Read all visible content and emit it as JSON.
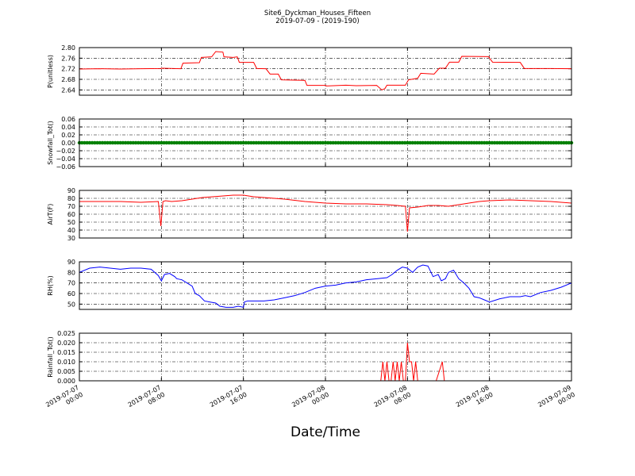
{
  "chart_data": {
    "type": "line",
    "title": "Site6_Dyckman_Houses_Fifteen",
    "subtitle": "2019-07-09 - (2019-190)",
    "xlabel": "Date/Time",
    "grid": true,
    "x_ticks": [
      "2019-07-07 00:00",
      "2019-07-07 08:00",
      "2019-07-07 16:00",
      "2019-07-08 00:00",
      "2019-07-08 08:00",
      "2019-07-08 16:00",
      "2019-07-09 00:00"
    ],
    "x_tick_lines": [
      [
        "2019-07-07",
        "00:00"
      ],
      [
        "2019-07-07",
        "08:00"
      ],
      [
        "2019-07-07",
        "16:00"
      ],
      [
        "2019-07-08",
        "00:00"
      ],
      [
        "2019-07-08",
        "08:00"
      ],
      [
        "2019-07-08",
        "16:00"
      ],
      [
        "2019-07-09",
        "00:00"
      ]
    ],
    "x_range_hours": [
      0,
      48
    ],
    "panels": [
      {
        "ylabel": "P(unitless)",
        "ylim": [
          2.62,
          2.8
        ],
        "yticks": [
          "2.80",
          "2.76",
          "2.72",
          "2.68",
          "2.64"
        ],
        "ytick_values": [
          2.8,
          2.76,
          2.72,
          2.68,
          2.64
        ],
        "color": "#ff0000",
        "hours": [
          0,
          2,
          4,
          6,
          7.9,
          8.1,
          9.9,
          10.1,
          11.7,
          11.9,
          12.9,
          13.3,
          14.0,
          14.1,
          15.0,
          15.4,
          15.6,
          17.0,
          17.3,
          18.2,
          18.6,
          19.4,
          19.7,
          22.0,
          22.2,
          24.0,
          24.1,
          26.0,
          27.0,
          29.0,
          29.5,
          29.8,
          30.0,
          31.8,
          32.1,
          33.0,
          33.3,
          34.6,
          35.1,
          35.7,
          36.1,
          37.0,
          37.3,
          39.9,
          40.3,
          43.0,
          43.4,
          46.0,
          48.0
        ],
        "values": [
          2.719,
          2.72,
          2.719,
          2.72,
          2.721,
          2.722,
          2.72,
          2.741,
          2.743,
          2.763,
          2.765,
          2.785,
          2.783,
          2.765,
          2.763,
          2.765,
          2.744,
          2.744,
          2.721,
          2.72,
          2.7,
          2.7,
          2.678,
          2.676,
          2.657,
          2.657,
          2.655,
          2.658,
          2.656,
          2.657,
          2.64,
          2.645,
          2.658,
          2.658,
          2.678,
          2.684,
          2.703,
          2.7,
          2.722,
          2.722,
          2.745,
          2.745,
          2.767,
          2.766,
          2.745,
          2.744,
          2.721,
          2.721,
          2.72
        ]
      },
      {
        "ylabel": "Snowfall_Tot()",
        "ylim": [
          -0.06,
          0.06
        ],
        "yticks": [
          "0.06",
          "0.04",
          "0.02",
          "0.00",
          "−0.02",
          "−0.04",
          "−0.06"
        ],
        "ytick_values": [
          0.06,
          0.04,
          0.02,
          0.0,
          -0.02,
          -0.04,
          -0.06
        ],
        "color": "#008000",
        "marker": "dot",
        "hours": [
          0,
          48
        ],
        "values": [
          0,
          0
        ]
      },
      {
        "ylabel": "AirT(F)",
        "ylim": [
          30,
          90
        ],
        "yticks": [
          "90",
          "80",
          "70",
          "60",
          "50",
          "40",
          "30"
        ],
        "ytick_values": [
          90,
          80,
          70,
          60,
          50,
          40,
          30
        ],
        "color": "#ff0000",
        "hours": [
          0,
          2,
          4,
          6,
          7.7,
          7.95,
          8.15,
          8.4,
          9.0,
          10.0,
          11.0,
          12.0,
          13.0,
          14.0,
          15.0,
          16.0,
          17.0,
          18.0,
          20.0,
          22.0,
          24.0,
          26.0,
          28.0,
          30.0,
          31.0,
          31.8,
          32.0,
          32.2,
          33.0,
          34.0,
          35.0,
          36.0,
          37.0,
          38.0,
          39.0,
          40.0,
          42.0,
          44.0,
          46.0,
          48.0
        ],
        "values": [
          76,
          76,
          76,
          75,
          76,
          45,
          76,
          77,
          76,
          77,
          79,
          81,
          82,
          83,
          84,
          84,
          82,
          81,
          79,
          76,
          74,
          73,
          73,
          72,
          71,
          70,
          38,
          68,
          69,
          71,
          71,
          70,
          72,
          74,
          76,
          77,
          78,
          77,
          76,
          74
        ]
      },
      {
        "ylabel": "RH(%)",
        "ylim": [
          45,
          90
        ],
        "yticks": [
          "90",
          "80",
          "70",
          "60",
          "50"
        ],
        "ytick_values": [
          90,
          80,
          70,
          60,
          50
        ],
        "color": "#0000ff",
        "hours": [
          0,
          1,
          2,
          4,
          5,
          6,
          7,
          7.7,
          8.0,
          8.3,
          8.8,
          9.3,
          9.5,
          10.0,
          10.5,
          11.0,
          11.3,
          11.7,
          12.2,
          12.7,
          13.3,
          13.7,
          14.3,
          15.0,
          15.5,
          16.0,
          16.1,
          16.4,
          17.0,
          18.0,
          19.0,
          20.0,
          21.0,
          22.0,
          23.0,
          24.0,
          25.0,
          26.0,
          27.0,
          28.0,
          29.0,
          30.0,
          30.5,
          31.0,
          31.5,
          32.0,
          32.5,
          33.0,
          33.5,
          34.0,
          34.5,
          35.0,
          35.3,
          35.7,
          36.0,
          36.5,
          37.0,
          37.5,
          38.0,
          38.5,
          39.0,
          39.5,
          40.0,
          41.0,
          42.0,
          43.0,
          43.5,
          44.0,
          45.0,
          46.0,
          47.0,
          48.0
        ],
        "values": [
          80,
          84,
          85,
          83,
          84,
          84,
          83,
          77,
          72,
          78,
          79,
          76,
          74,
          73,
          70,
          67,
          60,
          58,
          53,
          52,
          51,
          48,
          47,
          47,
          48,
          47,
          52,
          53,
          53,
          53,
          54,
          56,
          58,
          61,
          65,
          67,
          68,
          70,
          71,
          73,
          74,
          75,
          78,
          82,
          85,
          84,
          80,
          85,
          87,
          86,
          76,
          78,
          72,
          74,
          80,
          82,
          74,
          70,
          65,
          57,
          56,
          54,
          52,
          55,
          57,
          57,
          58,
          57,
          61,
          63,
          66,
          70
        ]
      },
      {
        "ylabel": "Rainfall_Tot()",
        "ylim": [
          0,
          0.025
        ],
        "yticks": [
          "0.025",
          "0.020",
          "0.015",
          "0.010",
          "0.005",
          "0.000"
        ],
        "ytick_values": [
          0.025,
          0.02,
          0.015,
          0.01,
          0.005,
          0.0
        ],
        "color": "#ff0000",
        "hours": [
          0,
          29.4,
          29.6,
          29.8,
          30.0,
          30.2,
          30.4,
          30.6,
          30.8,
          31.0,
          31.2,
          31.4,
          31.6,
          31.8,
          32.0,
          32.2,
          32.4,
          32.6,
          32.8,
          33.0,
          33.2,
          34.8,
          35.4,
          35.6,
          36.2,
          36.4,
          48.0
        ],
        "values": [
          0,
          0,
          0.01,
          0,
          0.01,
          0,
          0,
          0.01,
          0,
          0.01,
          0,
          0.01,
          0,
          0,
          0.02,
          0.01,
          0.01,
          0,
          0.01,
          0,
          0,
          0,
          0.01,
          0,
          0,
          0,
          0
        ]
      }
    ]
  }
}
